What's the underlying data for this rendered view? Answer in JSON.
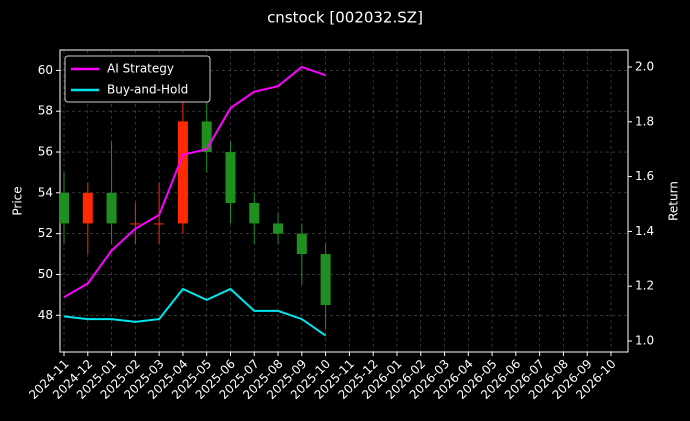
{
  "chart_data": {
    "type": "candlestick",
    "title": "cnstock [002032.SZ]",
    "ylabel": "Price",
    "y2label": "Return",
    "xticks": [
      "2024-11",
      "2024-12",
      "2025-01",
      "2025-02",
      "2025-03",
      "2025-04",
      "2025-05",
      "2025-06",
      "2025-07",
      "2025-08",
      "2025-09",
      "2025-10",
      "2025-11",
      "2025-12",
      "2026-01",
      "2026-02",
      "2026-03",
      "2026-04",
      "2026-05",
      "2026-06",
      "2026-07",
      "2026-08",
      "2026-09",
      "2026-10"
    ],
    "x": [
      "2024-11",
      "2024-12",
      "2025-01",
      "2025-02",
      "2025-03",
      "2025-04",
      "2025-05",
      "2025-06",
      "2025-07",
      "2025-08",
      "2025-09",
      "2025-10"
    ],
    "open": [
      54,
      52.5,
      54,
      52.5,
      52.5,
      52.5,
      57.5,
      56,
      53.5,
      52.5,
      52,
      51
    ],
    "high": [
      55,
      54.5,
      56.5,
      53.5,
      54.5,
      59.5,
      58.5,
      56.5,
      54,
      53,
      52.5,
      51.5
    ],
    "low": [
      51.5,
      51,
      51.5,
      51.5,
      51.5,
      52,
      55,
      52.5,
      51.5,
      51.5,
      49.5,
      47.3
    ],
    "close": [
      52.5,
      54,
      52.5,
      52.5,
      52.5,
      57.5,
      56,
      53.5,
      52.5,
      52,
      51,
      48.5
    ],
    "up_color": "#ff2a00",
    "down_color": "#1f8f1f",
    "ylim": [
      46.2,
      61.0
    ],
    "yticks": [
      48,
      50,
      52,
      54,
      56,
      58,
      60
    ],
    "y2lim": [
      0.96,
      2.062
    ],
    "y2ticks": [
      {
        "value": 1.0,
        "label": "1.0"
      },
      1.2,
      1.4,
      1.6,
      1.8,
      {
        "value": 2.0,
        "label": "2.0"
      }
    ],
    "series": [
      {
        "name": "AI Strategy",
        "color": "#ff00ff",
        "axis": "y2",
        "values": [
          1.16,
          1.21,
          1.33,
          1.41,
          1.46,
          1.68,
          1.7,
          1.85,
          1.91,
          1.93,
          2.0,
          1.97
        ]
      },
      {
        "name": "Buy-and-Hold",
        "color": "#00e5ee",
        "axis": "y2",
        "values": [
          1.09,
          1.08,
          1.08,
          1.07,
          1.08,
          1.19,
          1.15,
          1.19,
          1.11,
          1.11,
          1.08,
          1.02
        ]
      }
    ],
    "grid": true,
    "legend": "upper left"
  }
}
